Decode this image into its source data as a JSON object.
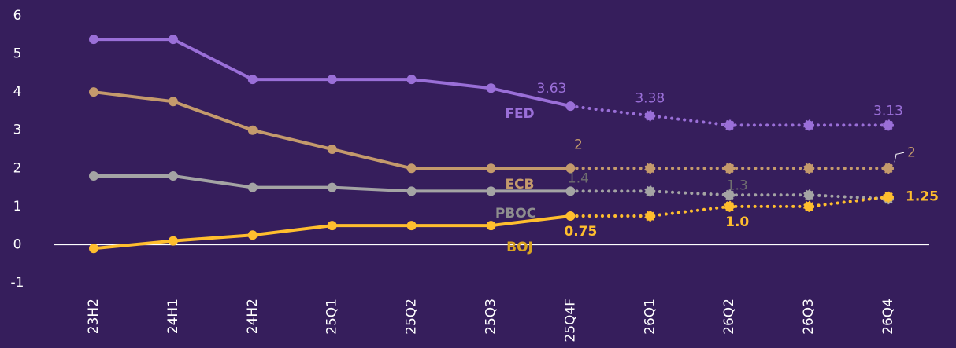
{
  "chart_data": {
    "type": "line",
    "categories": [
      "23H2",
      "24H1",
      "24H2",
      "25Q1",
      "25Q2",
      "25Q3",
      "25Q4F",
      "26Q1",
      "26Q2",
      "26Q3",
      "26Q4"
    ],
    "ylim": [
      -1,
      6
    ],
    "yticks": [
      -1,
      0,
      1,
      2,
      3,
      4,
      5,
      6
    ],
    "dotted_from": 6,
    "series": [
      {
        "name": "FED",
        "color": "#9a6fd8",
        "values": [
          5.38,
          5.38,
          4.33,
          4.33,
          4.33,
          4.1,
          3.63,
          3.38,
          3.13,
          3.13,
          3.13
        ],
        "value_labels": [
          null,
          null,
          null,
          null,
          null,
          null,
          "3.63",
          "3.38",
          null,
          null,
          "3.13"
        ]
      },
      {
        "name": "ECB",
        "color": "#c49a6c",
        "values": [
          4.0,
          3.75,
          3.0,
          2.5,
          2.0,
          2.0,
          2.0,
          2.0,
          2.0,
          2.0,
          2.0
        ],
        "value_labels": [
          null,
          null,
          null,
          null,
          null,
          null,
          "2",
          null,
          null,
          null,
          "2"
        ]
      },
      {
        "name": "PBOC",
        "color": "#a4a4a4",
        "values": [
          1.8,
          1.8,
          1.5,
          1.5,
          1.4,
          1.4,
          1.4,
          1.4,
          1.3,
          1.3,
          1.2
        ],
        "value_labels": [
          null,
          null,
          null,
          null,
          null,
          null,
          "1.4",
          null,
          "1.3",
          null,
          null
        ]
      },
      {
        "name": "BOJ",
        "color": "#ffbe2e",
        "values": [
          -0.1,
          0.1,
          0.25,
          0.5,
          0.5,
          0.5,
          0.75,
          0.75,
          1.0,
          1.0,
          1.25
        ],
        "value_labels": [
          null,
          null,
          null,
          null,
          null,
          null,
          "0.75",
          null,
          "1.0",
          null,
          "1.25"
        ]
      }
    ]
  }
}
